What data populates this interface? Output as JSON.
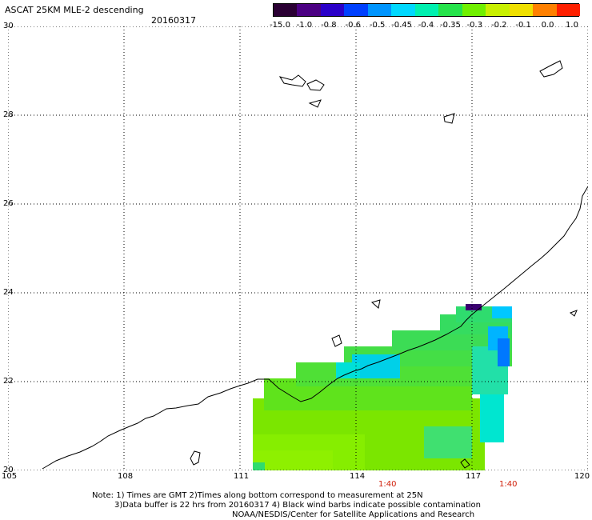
{
  "header": {
    "title": "ASCAT 25KM MLE-2 descending",
    "date": "20160317"
  },
  "colorbar": {
    "labels": [
      "-15.0",
      "-1.0",
      "-0.8",
      "-0.6",
      "-0.5",
      "-0.45",
      "-0.4",
      "-0.35",
      "-0.3",
      "-0.2",
      "-0.1",
      "0.0",
      "1.0"
    ],
    "colors": [
      "#2a0033",
      "#4b0082",
      "#2a00c8",
      "#0040ff",
      "#0095ff",
      "#00d8ff",
      "#00f0b0",
      "#25e34a",
      "#70f000",
      "#c8f000",
      "#f0e000",
      "#ff8000",
      "#ff2000"
    ]
  },
  "axes": {
    "lat_labels": [
      "30",
      "28",
      "26",
      "24",
      "22",
      "20"
    ],
    "lon_labels": [
      "105",
      "108",
      "111",
      "114",
      "117",
      "120"
    ]
  },
  "pass_times": [
    "1:40",
    "1:40"
  ],
  "notes": {
    "line1": "Note: 1) Times are GMT 2)Times along bottom correspond to measurement at 25N",
    "line2": "3)Data buffer is 22 hrs from 20160317 4) Black wind barbs indicate possible contamination",
    "line3": "NOAA/NESDIS/Center for Satellite Applications and Research"
  }
}
